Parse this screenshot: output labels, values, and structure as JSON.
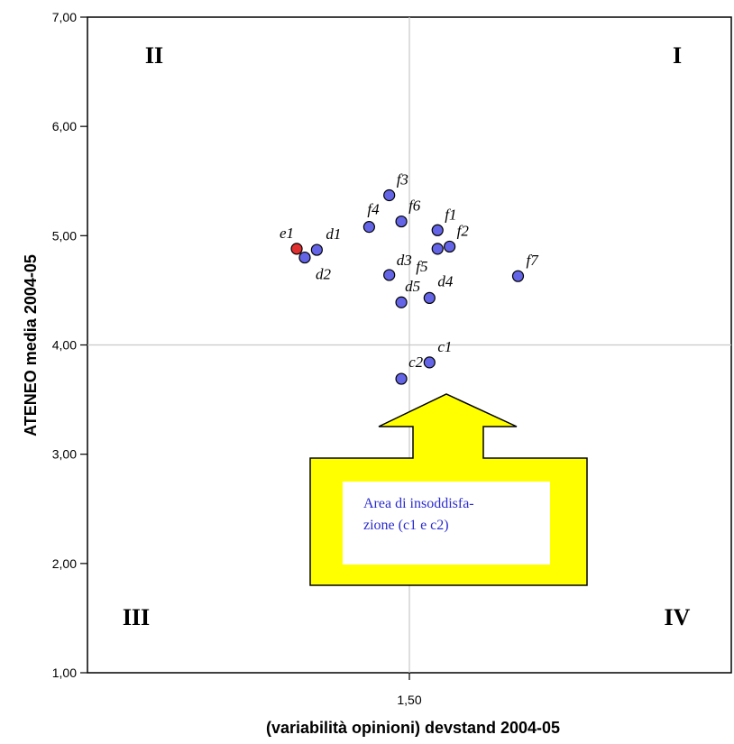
{
  "chart_data": {
    "type": "scatter",
    "xlabel": "(variabilità opinioni) devstand 2004-05",
    "ylabel": "ATENEO media 2004-05",
    "xlim": [
      1.1,
      1.9
    ],
    "ylim": [
      1.0,
      7.0
    ],
    "x_ticks": [
      {
        "value": 1.5,
        "label": "1,50"
      }
    ],
    "y_ticks": [
      {
        "value": 1,
        "label": "1,00"
      },
      {
        "value": 2,
        "label": "2,00"
      },
      {
        "value": 3,
        "label": "3,00"
      },
      {
        "value": 4,
        "label": "4,00"
      },
      {
        "value": 5,
        "label": "5,00"
      },
      {
        "value": 6,
        "label": "6,00"
      },
      {
        "value": 7,
        "label": "7,00"
      }
    ],
    "reference_lines": {
      "x": 1.5,
      "y": 4.0
    },
    "quadrants": [
      {
        "label": "II",
        "position": "top-left"
      },
      {
        "label": "I",
        "position": "top-right"
      },
      {
        "label": "III",
        "position": "bottom-left"
      },
      {
        "label": "IV",
        "position": "bottom-right"
      }
    ],
    "points": [
      {
        "label": "e1",
        "x": 1.36,
        "y": 4.88,
        "color": "#e03030"
      },
      {
        "label": "d1",
        "x": 1.385,
        "y": 4.87,
        "color": "#6464e6"
      },
      {
        "label": "d2",
        "x": 1.37,
        "y": 4.8,
        "color": "#6464e6"
      },
      {
        "label": "f3",
        "x": 1.475,
        "y": 5.37,
        "color": "#6464e6"
      },
      {
        "label": "f4",
        "x": 1.45,
        "y": 5.08,
        "color": "#6464e6"
      },
      {
        "label": "f6",
        "x": 1.49,
        "y": 5.13,
        "color": "#6464e6"
      },
      {
        "label": "f1",
        "x": 1.535,
        "y": 5.05,
        "color": "#6464e6"
      },
      {
        "label": "f2",
        "x": 1.55,
        "y": 4.9,
        "color": "#6464e6"
      },
      {
        "label": "f5",
        "x": 1.535,
        "y": 4.88,
        "color": "#6464e6"
      },
      {
        "label": "d3",
        "x": 1.475,
        "y": 4.64,
        "color": "#6464e6"
      },
      {
        "label": "d4",
        "x": 1.525,
        "y": 4.43,
        "color": "#6464e6"
      },
      {
        "label": "d5",
        "x": 1.49,
        "y": 4.39,
        "color": "#6464e6"
      },
      {
        "label": "f7",
        "x": 1.635,
        "y": 4.63,
        "color": "#6464e6"
      },
      {
        "label": "c1",
        "x": 1.525,
        "y": 3.84,
        "color": "#6464e6"
      },
      {
        "label": "c2",
        "x": 1.49,
        "y": 3.69,
        "color": "#6464e6"
      }
    ],
    "annotation": {
      "text_line1": "Area di insoddisfa-",
      "text_line2": "zione (c1 e  c2)",
      "arrow_fill": "#ffff00",
      "box_fill": "#ffffff"
    },
    "grid": false
  }
}
